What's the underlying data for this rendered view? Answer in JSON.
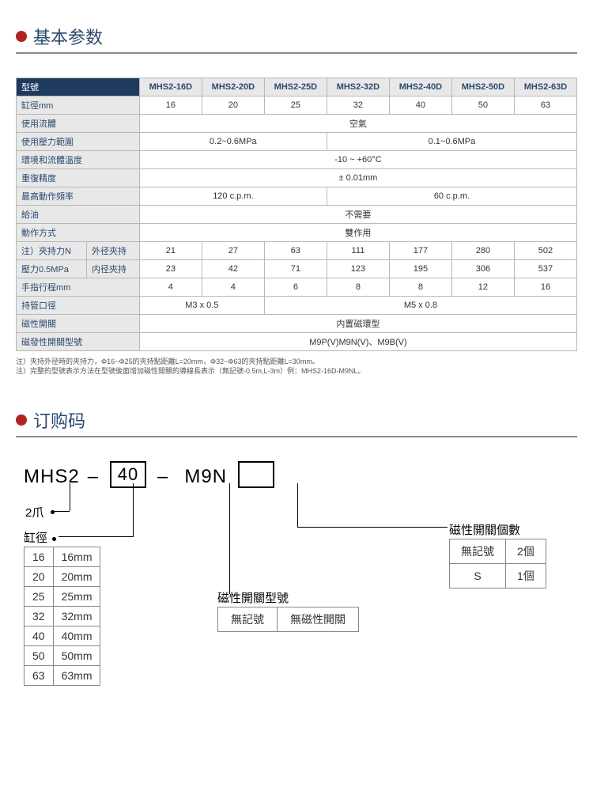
{
  "section1_title": "基本参数",
  "section2_title": "订购码",
  "spec_table": {
    "model_label": "型號",
    "models": [
      "MHS2-16D",
      "MHS2-20D",
      "MHS2-25D",
      "MHS2-32D",
      "MHS2-40D",
      "MHS2-50D",
      "MHS2-63D"
    ],
    "bore_label": "缸徑mm",
    "bore": [
      "16",
      "20",
      "25",
      "32",
      "40",
      "50",
      "63"
    ],
    "fluid_label": "使用流體",
    "fluid": "空氣",
    "pressure_label": "使用壓力範圍",
    "pressure_a": "0.2~0.6MPa",
    "pressure_b": "0.1~0.6MPa",
    "temp_label": "環境和流體溫度",
    "temp": "-10 ~ +60°C",
    "repeat_label": "重復精度",
    "repeat": "± 0.01mm",
    "freq_label": "最高動作頻率",
    "freq_a": "120 c.p.m.",
    "freq_b": "60 c.p.m.",
    "lube_label": "給油",
    "lube": "不需要",
    "action_label": "動作方式",
    "action": "雙作用",
    "grip_label": "注）夾持力N",
    "grip_sub1": "外径夾持",
    "grip_row1": [
      "21",
      "27",
      "63",
      "111",
      "177",
      "280",
      "502"
    ],
    "press05_label": "壓力0.5MPa",
    "grip_sub2": "内径夾持",
    "grip_row2": [
      "23",
      "42",
      "71",
      "123",
      "195",
      "306",
      "537"
    ],
    "stroke_label": "手指行程mm",
    "stroke": [
      "4",
      "4",
      "6",
      "8",
      "8",
      "12",
      "16"
    ],
    "port_label": "持管口徑",
    "port_a": "M3 x 0.5",
    "port_b": "M5 x 0.8",
    "mag_label": "磁性開關",
    "mag": "内置磁環型",
    "magmodel_label": "磁發性開關型號",
    "magmodel": "M9P(V)M9N(V)、M9B(V)"
  },
  "notes_line1": "注）夾持外径時的夾持力，Φ16~Φ25的夾持點距離L=20mm，Φ32~Φ63的夾持點距離L=30mm。",
  "notes_line2": "注）完整的型號表示方法在型號後面增加磁性開關的導線長表示（無記號-0.5m,L-3m）例：MHS2-16D-M9NL。",
  "order": {
    "prefix": "MHS2",
    "box1": "40",
    "mid": "M9N",
    "box2": "",
    "claw_label": "2爪",
    "bore_heading": "缸徑",
    "bore_rows": [
      [
        "16",
        "16mm"
      ],
      [
        "20",
        "20mm"
      ],
      [
        "25",
        "25mm"
      ],
      [
        "32",
        "32mm"
      ],
      [
        "40",
        "40mm"
      ],
      [
        "50",
        "50mm"
      ],
      [
        "63",
        "63mm"
      ]
    ],
    "mag_heading": "磁性開關型號",
    "mag_rows": [
      [
        "無記號",
        "無磁性開關"
      ]
    ],
    "count_heading": "磁性開關個數",
    "count_rows": [
      [
        "無記號",
        "2個"
      ],
      [
        "S",
        "1個"
      ]
    ]
  },
  "colors": {
    "bullet": "#b22222",
    "title": "#2b4a6f",
    "header_dark": "#1e3a5f",
    "header_light": "#e8e8e8",
    "border": "#b8b8b8"
  }
}
